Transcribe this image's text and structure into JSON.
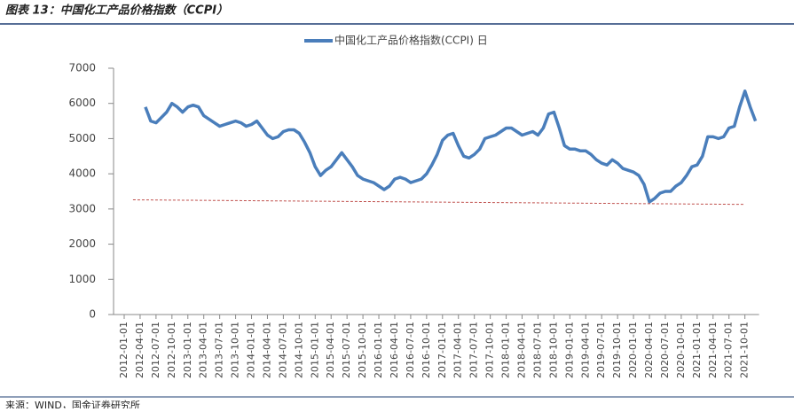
{
  "header": {
    "title": "图表 13：中国化工产品价格指数（CCPI）"
  },
  "source": "来源：WIND，国金证券研究所",
  "chart_data": {
    "type": "line",
    "categories": [
      "2012-01-01",
      null,
      null,
      "2012-04-01",
      null,
      null,
      "2012-07-01",
      null,
      null,
      "2012-10-01",
      null,
      null,
      "2013-01-01",
      null,
      null,
      "2013-04-01",
      null,
      null,
      "2013-07-01",
      null,
      null,
      "2013-10-01",
      null,
      null,
      "2014-01-01",
      null,
      null,
      "2014-04-01",
      null,
      null,
      "2014-07-01",
      null,
      null,
      "2014-10-01",
      null,
      null,
      "2015-01-01",
      null,
      null,
      "2015-04-01",
      null,
      null,
      "2015-07-01",
      null,
      null,
      "2015-10-01",
      null,
      null,
      "2016-01-01",
      null,
      null,
      "2016-04-01",
      null,
      null,
      "2016-07-01",
      null,
      null,
      "2016-10-01",
      null,
      null,
      "2017-01-01",
      null,
      null,
      "2017-04-01",
      null,
      null,
      "2017-07-01",
      null,
      null,
      "2017-10-01",
      null,
      null,
      "2018-01-01",
      null,
      null,
      "2018-04-01",
      null,
      null,
      "2018-07-01",
      null,
      null,
      "2018-10-01",
      null,
      null,
      "2019-01-01",
      null,
      null,
      "2019-04-01",
      null,
      null,
      "2019-07-01",
      null,
      null,
      "2019-10-01",
      null,
      null,
      "2020-01-01",
      null,
      null,
      "2020-04-01",
      null,
      null,
      "2020-07-01",
      null,
      null,
      "2020-10-01",
      null,
      null,
      "2021-01-01",
      null,
      null,
      "2021-04-01",
      null,
      null,
      "2021-07-01",
      null,
      null,
      "2021-10-01",
      null,
      null
    ],
    "series": [
      {
        "name": "中国化工产品价格指数(CCPI) 日",
        "color": "#4a7ebb",
        "values": [
          null,
          null,
          null,
          null,
          5900,
          5500,
          5450,
          5600,
          5750,
          6000,
          5900,
          5750,
          5900,
          5950,
          5900,
          5650,
          5550,
          5450,
          5350,
          5400,
          5450,
          5500,
          5450,
          5350,
          5400,
          5500,
          5300,
          5100,
          5000,
          5050,
          5200,
          5250,
          5250,
          5150,
          4900,
          4600,
          4200,
          3950,
          4100,
          4200,
          4400,
          4600,
          4400,
          4200,
          3950,
          3850,
          3800,
          3750,
          3650,
          3550,
          3650,
          3850,
          3900,
          3850,
          3750,
          3800,
          3850,
          4000,
          4250,
          4550,
          4950,
          5100,
          5150,
          4800,
          4500,
          4450,
          4550,
          4700,
          5000,
          5050,
          5100,
          5200,
          5300,
          5300,
          5200,
          5100,
          5150,
          5200,
          5100,
          5300,
          5700,
          5750,
          5300,
          4800,
          4700,
          4700,
          4650,
          4650,
          4550,
          4400,
          4300,
          4250,
          4400,
          4300,
          4150,
          4100,
          4050,
          3950,
          3700,
          3200,
          3300,
          3450,
          3500,
          3500,
          3650,
          3750,
          3950,
          4200,
          4250,
          4500,
          5050,
          5050,
          5000,
          5050,
          5300,
          5350,
          5900,
          6350,
          5900,
          5500
        ]
      }
    ],
    "trendline": {
      "color": "#c0504d",
      "values": [
        3260,
        3130
      ]
    },
    "ylim": [
      0,
      7000
    ],
    "yticks": [
      0,
      1000,
      2000,
      3000,
      4000,
      5000,
      6000,
      7000
    ],
    "legend": "top"
  }
}
